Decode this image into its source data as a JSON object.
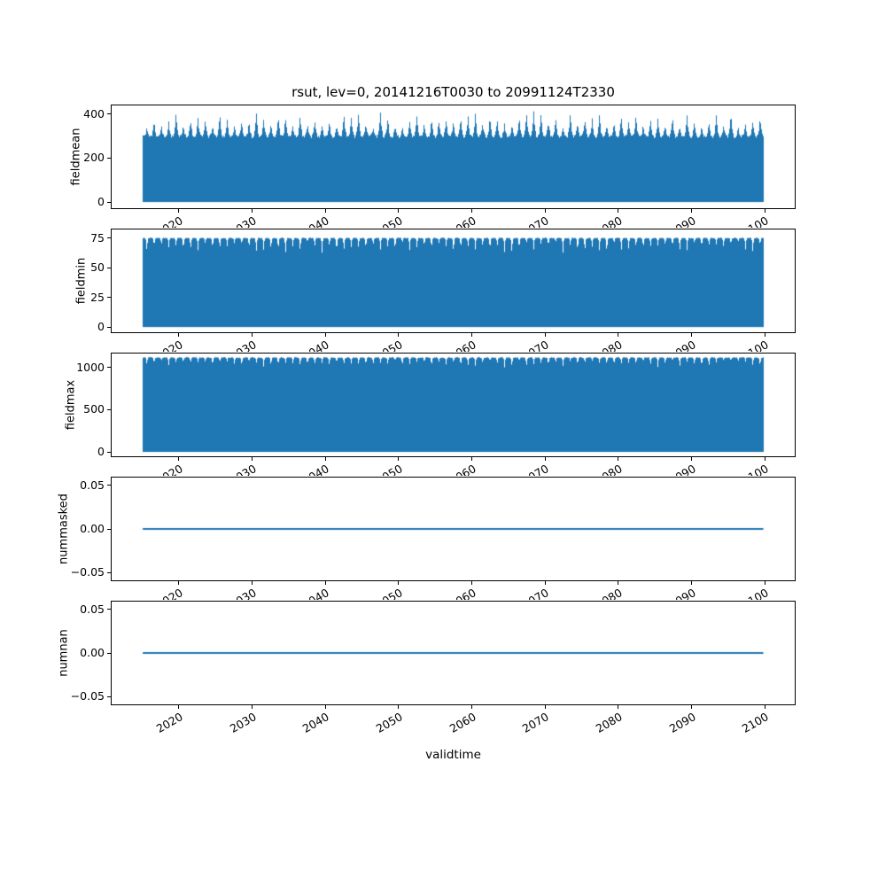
{
  "figure": {
    "title": "rsut, lev=0, 20141216T0030 to 20991124T2330",
    "xlabel": "validtime",
    "accent_color": "#1f77b4",
    "background": "#ffffff"
  },
  "x_axis": {
    "label": "validtime",
    "data_start": 2014.96,
    "data_end": 2099.9,
    "lim": [
      2010.7,
      2104.2
    ],
    "ticks": [
      2020,
      2030,
      2040,
      2050,
      2060,
      2070,
      2080,
      2090,
      2100
    ],
    "tick_labels": [
      "2020",
      "2030",
      "2040",
      "2050",
      "2060",
      "2070",
      "2080",
      "2090",
      "2100"
    ]
  },
  "chart_data": [
    {
      "type": "area",
      "ylabel": "fieldmean",
      "ylim": [
        -28,
        440
      ],
      "yticks": [
        0,
        200,
        400
      ],
      "ytick_labels": [
        "0",
        "200",
        "400"
      ],
      "series": {
        "name": "fieldmean",
        "pattern": "annual-oscillation",
        "fill_from": 0,
        "trough": 298,
        "peak_min": 335,
        "peak_max": 412,
        "cycles": 85,
        "description": "half-hourly rsut field mean oscillating between ~0 and annual peaks of ~335-412"
      }
    },
    {
      "type": "area",
      "ylabel": "fieldmin",
      "ylim": [
        -4.4,
        82.4
      ],
      "yticks": [
        0,
        25,
        50,
        75
      ],
      "ytick_labels": [
        "0",
        "25",
        "50",
        "75"
      ],
      "series": {
        "name": "fieldmin",
        "pattern": "annual-notch",
        "fill_from": 0,
        "top": 75.5,
        "notch_min": 4,
        "notch_max": 16,
        "cycles": 85,
        "description": "field minimum oscillating between 0 and ~75 with small annual notches"
      }
    },
    {
      "type": "area",
      "ylabel": "fieldmax",
      "ylim": [
        -52,
        1165
      ],
      "yticks": [
        0,
        500,
        1000
      ],
      "ytick_labels": [
        "0",
        "500",
        "1000"
      ],
      "series": {
        "name": "fieldmax",
        "pattern": "annual-notch",
        "fill_from": 0,
        "top": 1122,
        "notch_min": 40,
        "notch_max": 130,
        "cycles": 85,
        "description": "field maximum oscillating between 0 and ~1120 with annual notches"
      }
    },
    {
      "type": "line",
      "ylabel": "nummasked",
      "ylim": [
        -0.059,
        0.059
      ],
      "yticks": [
        -0.05,
        0.0,
        0.05
      ],
      "ytick_labels": [
        "−0.05",
        "0.00",
        "0.05"
      ],
      "series": {
        "name": "nummasked",
        "pattern": "constant",
        "value": 0.0,
        "description": "number of masked points, constant 0 for entire period"
      }
    },
    {
      "type": "line",
      "ylabel": "numnan",
      "ylim": [
        -0.059,
        0.059
      ],
      "yticks": [
        -0.05,
        0.0,
        0.05
      ],
      "ytick_labels": [
        "−0.05",
        "0.00",
        "0.05"
      ],
      "series": {
        "name": "numnan",
        "pattern": "constant",
        "value": 0.0,
        "description": "number of NaN points, constant 0 for entire period"
      }
    }
  ]
}
